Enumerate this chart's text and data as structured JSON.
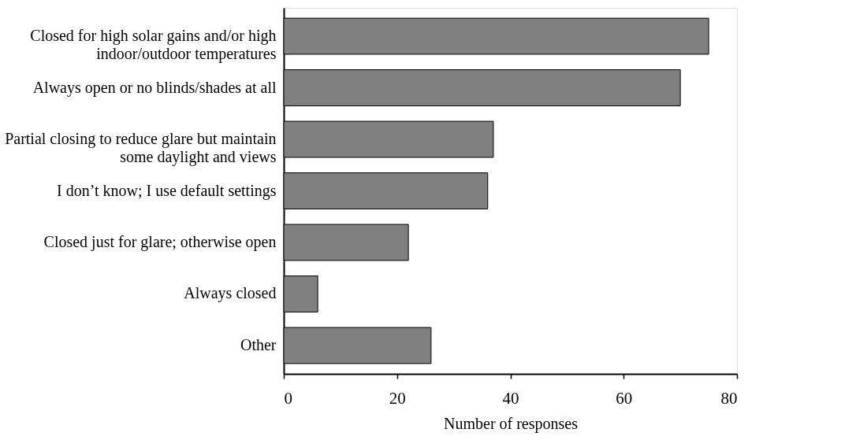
{
  "chart_data": {
    "type": "bar",
    "orientation": "horizontal",
    "xlabel": "Number of responses",
    "categories": [
      "Closed for high solar gains and/or high indoor/outdoor temperatures",
      "Always open or no blinds/shades at all",
      "Partial closing to reduce glare but maintain some daylight and views",
      "I don’t know; I use default settings",
      "Closed just for glare; otherwise open",
      "Always closed",
      "Other"
    ],
    "values": [
      75,
      70,
      37,
      36,
      22,
      6,
      26
    ],
    "color": "#808080",
    "xlim": [
      0,
      80
    ],
    "xticks": [
      0,
      20,
      40,
      60,
      80
    ],
    "grid": false
  }
}
